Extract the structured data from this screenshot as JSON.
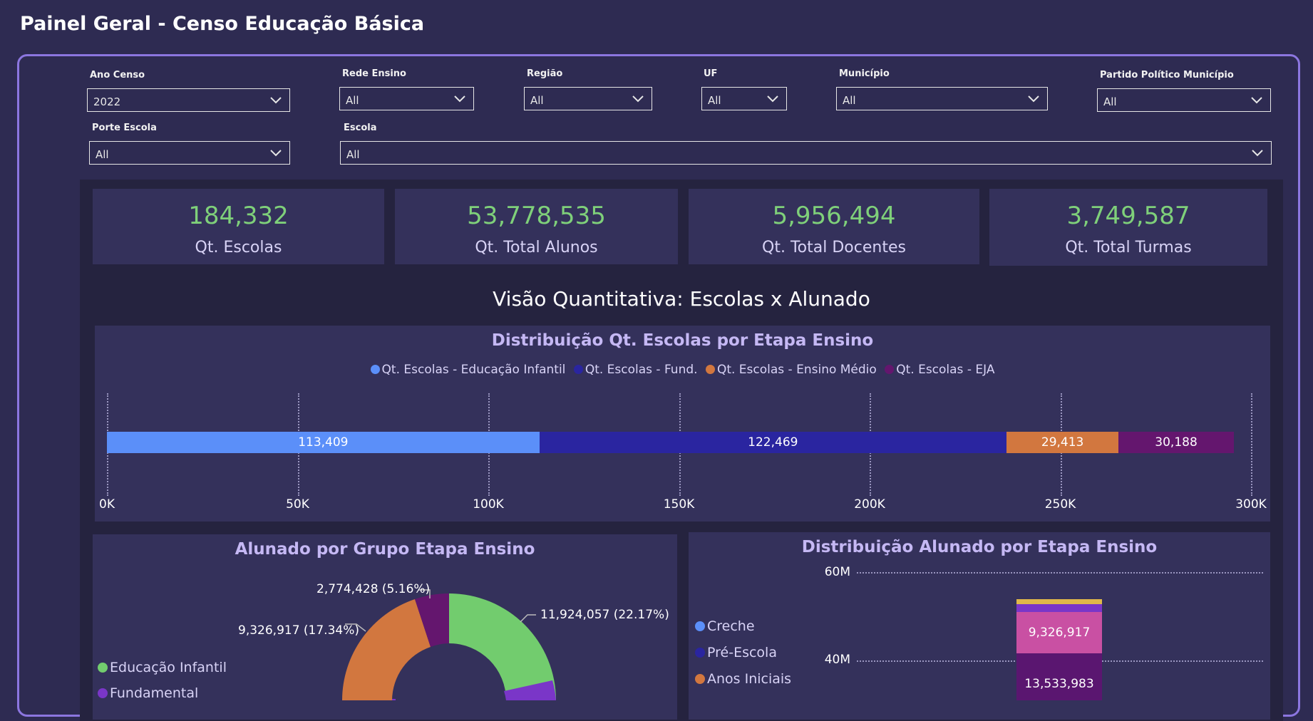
{
  "page_title": "Painel Geral - Censo Educação Básica",
  "filters": {
    "ano_censo": {
      "label": "Ano Censo",
      "value": "2022"
    },
    "rede_ensino": {
      "label": "Rede Ensino",
      "value": "All"
    },
    "regiao": {
      "label": "Região",
      "value": "All"
    },
    "uf": {
      "label": "UF",
      "value": "All"
    },
    "municipio": {
      "label": "Município",
      "value": "All"
    },
    "partido": {
      "label": "Partido Político Município",
      "value": "All"
    },
    "porte_escola": {
      "label": "Porte Escola",
      "value": "All"
    },
    "escola": {
      "label": "Escola",
      "value": "All"
    }
  },
  "kpis": [
    {
      "value": "184,332",
      "label": "Qt. Escolas"
    },
    {
      "value": "53,778,535",
      "label": "Qt. Total Alunos"
    },
    {
      "value": "5,956,494",
      "label": "Qt. Total Docentes"
    },
    {
      "value": "3,749,587",
      "label": "Qt. Total Turmas"
    }
  ],
  "section_title": "Visão Quantitativa: Escolas x Alunado",
  "colors": {
    "infantil": "#5b8ff9",
    "fund": "#2a25a0",
    "medio": "#d2773f",
    "eja": "#64166e",
    "green": "#72cc6e",
    "pink": "#c950a3",
    "purple": "#7a36c8",
    "gold": "#e0b84a"
  },
  "chart_data": [
    {
      "type": "bar",
      "title": "Distribuição Qt. Escolas por Etapa Ensino",
      "orientation": "horizontal-stacked",
      "series": [
        {
          "name": "Qt. Escolas - Educação Infantil",
          "values": [
            113409
          ],
          "label": "113,409"
        },
        {
          "name": "Qt. Escolas - Fund.",
          "values": [
            122469
          ],
          "label": "122,469"
        },
        {
          "name": "Qt. Escolas - Ensino Médio",
          "values": [
            29413
          ],
          "label": "29,413"
        },
        {
          "name": "Qt. Escolas - EJA",
          "values": [
            30188
          ],
          "label": "30,188"
        }
      ],
      "xlim": [
        0,
        300000
      ],
      "xticks": [
        "0K",
        "50K",
        "100K",
        "150K",
        "200K",
        "250K",
        "300K"
      ],
      "legend": "top-center",
      "grid": true
    },
    {
      "type": "pie",
      "title": "Alunado por Grupo Etapa Ensino",
      "legend_items": [
        "Educação Infantil",
        "Fundamental"
      ],
      "slice_labels": [
        {
          "label": "11,924,057 (22.17%)",
          "value": 11924057
        },
        {
          "label": "9,326,917 (17.34%)",
          "value": 9326917
        },
        {
          "label": "2,774,428 (5.16%)",
          "value": 2774428
        }
      ]
    },
    {
      "type": "bar",
      "title": "Distribuição Alunado por Etapa Ensino",
      "orientation": "vertical-stacked",
      "legend_items": [
        "Creche",
        "Pré-Escola",
        "Anos Iniciais"
      ],
      "yticks": [
        "60M",
        "40M"
      ],
      "segment_labels": [
        "9,326,917",
        "13,533,983"
      ]
    }
  ]
}
